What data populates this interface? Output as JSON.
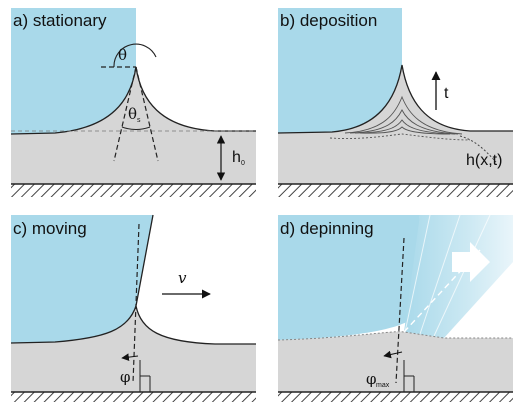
{
  "panels": [
    {
      "id": "a",
      "label": "a) stationary",
      "symbols": {
        "contact_angle": "θ",
        "tip_angle": "θ",
        "tip_angle_sub": "s",
        "height": "h",
        "height_sub": "0"
      }
    },
    {
      "id": "b",
      "label": "b) deposition",
      "symbols": {
        "time": "t",
        "profile": "h(x,t)"
      }
    },
    {
      "id": "c",
      "label": "c) moving",
      "symbols": {
        "velocity": "v",
        "tilt_angle": "φ"
      }
    },
    {
      "id": "d",
      "label": "d) depinning",
      "symbols": {
        "tilt_angle": "φ",
        "tilt_angle_sub": "max"
      }
    }
  ],
  "colors": {
    "liquid": "#a9d9ea",
    "substrate": "#d6d6d6",
    "line": "#222222",
    "hatch": "#444444"
  }
}
